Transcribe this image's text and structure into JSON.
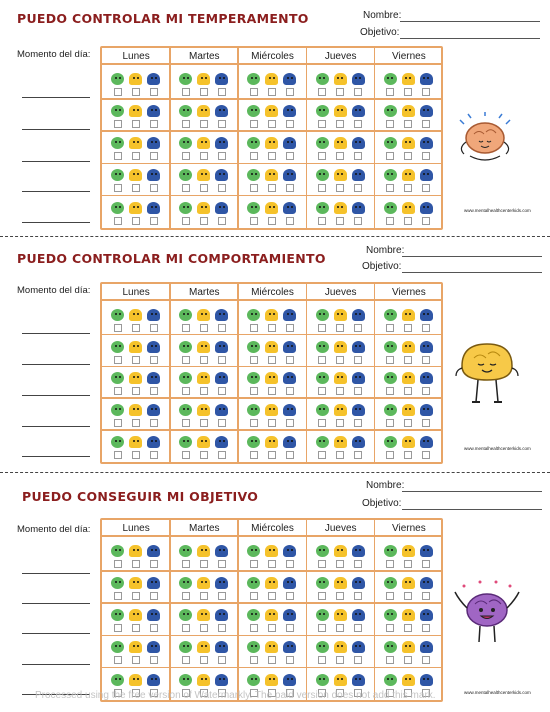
{
  "days": [
    "Lunes",
    "Martes",
    "Miércoles",
    "Jueves",
    "Viernes"
  ],
  "moment_label": "Momento del día:",
  "nombre_label": "Nombre:",
  "objetivo_label": "Objetivo:",
  "website": "www.mentalhealthcenterkids.com",
  "colors": {
    "title": "#8b1e1e",
    "grid_border": "#e8a567",
    "green": "#5cb85c",
    "yellow": "#f5c22b",
    "blue": "#2f56a6"
  },
  "sections": [
    {
      "title": "PUEDO CONTROLAR MI TEMPERAMENTO",
      "mascot": "meditating-brain-icon"
    },
    {
      "title": "PUEDO CONTROLAR MI COMPORTAMIENTO",
      "mascot": "calm-yellow-brain-icon"
    },
    {
      "title": "PUEDO CONSEGUIR MI OBJETIVO",
      "mascot": "happy-purple-brain-icon"
    }
  ],
  "watermark": "Processed using the free version of Watermarkly. The paid version does not add this mark."
}
